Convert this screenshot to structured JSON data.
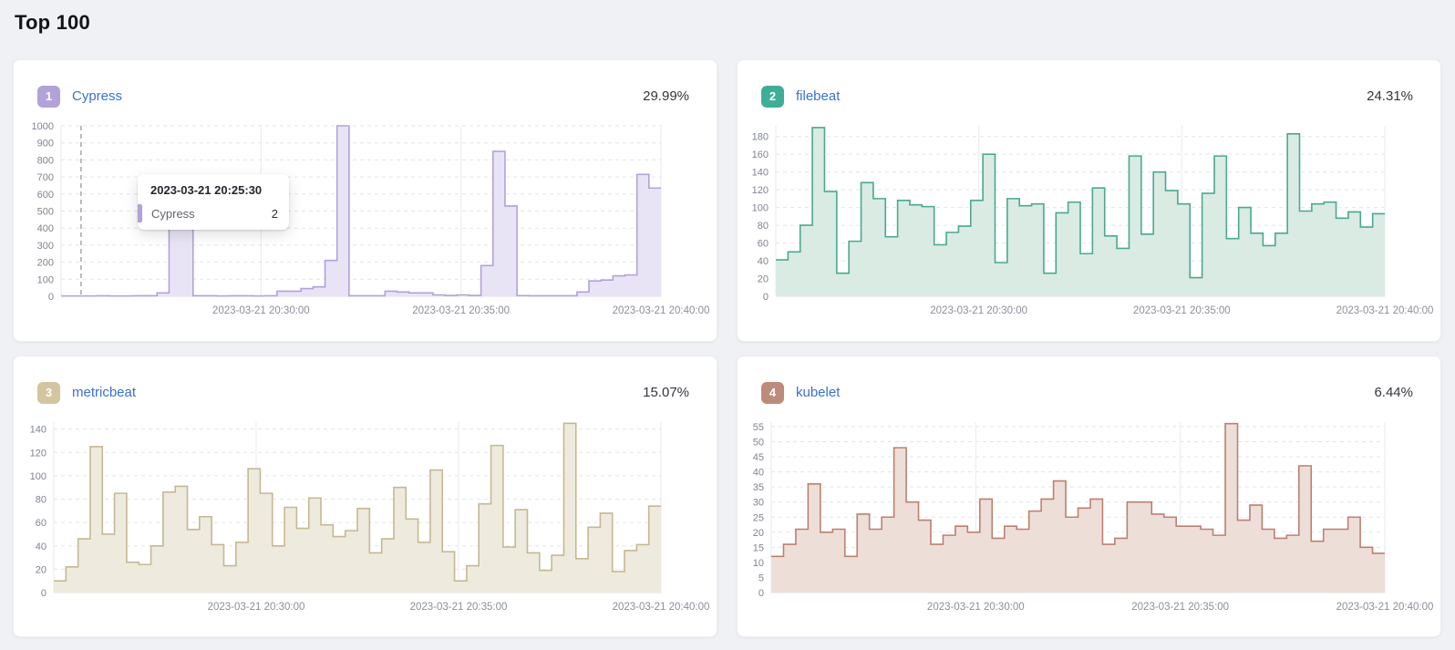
{
  "page": {
    "title": "Top 100"
  },
  "tooltip": {
    "title": "2023-03-21 20:25:30",
    "series": "Cypress",
    "value": "2"
  },
  "chart_data": [
    {
      "type": "area",
      "rank": "1",
      "name": "Cypress",
      "percent": "29.99%",
      "badge_color": "#b2a2d7",
      "line_color": "#b3a1d8",
      "fill_color": "#e9e4f5",
      "ymax": 1000,
      "yticks": [
        0,
        100,
        200,
        300,
        400,
        500,
        600,
        700,
        800,
        900,
        1000
      ],
      "x_labels": [
        "2023-03-21 20:30:00",
        "2023-03-21 20:35:00",
        "2023-03-21 20:40:00"
      ],
      "cursor_fraction": 0.0333,
      "values": [
        2,
        2,
        2,
        3,
        2,
        2,
        3,
        3,
        20,
        520,
        520,
        3,
        3,
        2,
        3,
        3,
        2,
        3,
        30,
        30,
        45,
        55,
        210,
        1000,
        3,
        3,
        3,
        30,
        25,
        20,
        20,
        8,
        5,
        8,
        5,
        180,
        850,
        530,
        4,
        3,
        3,
        3,
        3,
        25,
        90,
        95,
        120,
        125,
        715,
        635
      ]
    },
    {
      "type": "area",
      "rank": "2",
      "name": "filebeat",
      "percent": "24.31%",
      "badge_color": "#3fae96",
      "line_color": "#4aa98f",
      "fill_color": "#d9ebe3",
      "ymax": 192,
      "yticks": [
        0,
        20,
        40,
        60,
        80,
        100,
        120,
        140,
        160,
        180
      ],
      "x_labels": [
        "2023-03-21 20:30:00",
        "2023-03-21 20:35:00",
        "2023-03-21 20:40:00"
      ],
      "values": [
        41,
        50,
        80,
        190,
        118,
        26,
        62,
        128,
        110,
        67,
        108,
        103,
        101,
        58,
        72,
        79,
        108,
        160,
        38,
        110,
        102,
        104,
        26,
        94,
        106,
        48,
        122,
        68,
        54,
        158,
        70,
        140,
        119,
        104,
        21,
        116,
        158,
        65,
        100,
        71,
        57,
        71,
        183,
        96,
        104,
        106,
        88,
        95,
        78,
        93
      ]
    },
    {
      "type": "area",
      "rank": "3",
      "name": "metricbeat",
      "percent": "15.07%",
      "badge_color": "#d2c5a0",
      "line_color": "#c6b893",
      "fill_color": "#eeeadd",
      "ymax": 146,
      "yticks": [
        0,
        20,
        40,
        60,
        80,
        100,
        120,
        140
      ],
      "x_labels": [
        "2023-03-21 20:30:00",
        "2023-03-21 20:35:00",
        "2023-03-21 20:40:00"
      ],
      "values": [
        10,
        22,
        46,
        125,
        50,
        85,
        26,
        24,
        40,
        86,
        91,
        54,
        65,
        41,
        23,
        43,
        106,
        85,
        40,
        73,
        55,
        81,
        58,
        48,
        53,
        72,
        34,
        46,
        90,
        63,
        43,
        105,
        35,
        10,
        23,
        76,
        126,
        39,
        71,
        34,
        19,
        32,
        145,
        29,
        56,
        68,
        18,
        36,
        41,
        74
      ]
    },
    {
      "type": "area",
      "rank": "4",
      "name": "kubelet",
      "percent": "6.44%",
      "badge_color": "#bd8b7c",
      "line_color": "#bc8070",
      "fill_color": "#eeded8",
      "ymax": 56.5,
      "yticks": [
        0,
        5,
        10,
        15,
        20,
        25,
        30,
        35,
        40,
        45,
        50,
        55
      ],
      "x_labels": [
        "2023-03-21 20:30:00",
        "2023-03-21 20:35:00",
        "2023-03-21 20:40:00"
      ],
      "values": [
        12,
        16,
        21,
        36,
        20,
        21,
        12,
        26,
        21,
        25,
        48,
        30,
        24,
        16,
        19,
        22,
        20,
        31,
        18,
        22,
        21,
        27,
        31,
        37,
        25,
        28,
        31,
        16,
        18,
        30,
        30,
        26,
        25,
        22,
        22,
        21,
        19,
        56,
        24,
        29,
        21,
        18,
        19,
        42,
        17,
        21,
        21,
        25,
        15,
        13
      ]
    }
  ]
}
